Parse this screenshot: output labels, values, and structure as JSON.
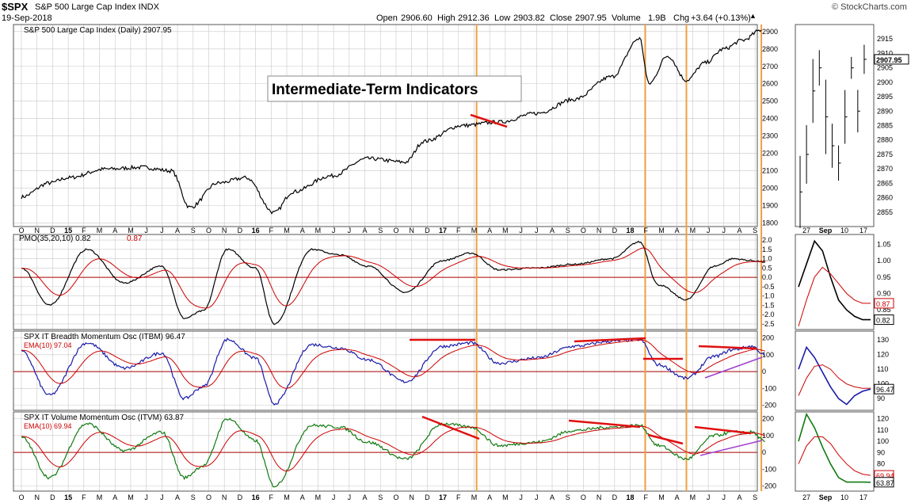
{
  "header": {
    "symbol": "$SPX",
    "name": "S&P 500 Large Cap Index INDX",
    "date": "19-Sep-2018",
    "credit": "© StockCharts.com",
    "open_label": "Open",
    "open": "2906.60",
    "high_label": "High",
    "high": "2912.36",
    "low_label": "Low",
    "low": "2903.82",
    "close_label": "Close",
    "close": "2907.95",
    "volume_label": "Volume",
    "volume": "1.9B",
    "chg_label": "Chg",
    "chg": "+3.64 (+0.13%)"
  },
  "colors": {
    "price": "#000000",
    "signal": "#cc0000",
    "itbm": "#1a1aaa",
    "itvm": "#117a11",
    "vline": "#f0a040",
    "trend_red": "#e01010",
    "trend_violet": "#a040d0",
    "zero": "#aa0000",
    "grid": "#c8c8c8",
    "frame": "#555555"
  },
  "x_axis": {
    "month_labels": [
      "O",
      "N",
      "D",
      "15",
      "F",
      "M",
      "A",
      "M",
      "J",
      "J",
      "A",
      "S",
      "O",
      "N",
      "D",
      "16",
      "F",
      "M",
      "A",
      "M",
      "J",
      "J",
      "A",
      "S",
      "O",
      "N",
      "D",
      "17",
      "F",
      "M",
      "A",
      "M",
      "J",
      "J",
      "A",
      "S",
      "O",
      "N",
      "D",
      "18",
      "F",
      "M",
      "A",
      "M",
      "J",
      "J",
      "A",
      "S"
    ],
    "bold_labels": [
      "15",
      "16",
      "17",
      "18"
    ],
    "zoom_labels": [
      "27",
      "Sep",
      "10",
      "17"
    ]
  },
  "annotation": "Intermediate-Term Indicators",
  "chart_data": [
    {
      "type": "line",
      "panel": "price",
      "title": "S&P 500 Large Cap Index (Daily) 2907.95",
      "frequency": "daily",
      "x_range": [
        "2014-10",
        "2018-09"
      ],
      "ylim": [
        1780,
        2940
      ],
      "y_ticks": [
        1800,
        1900,
        2000,
        2100,
        2200,
        2300,
        2400,
        2500,
        2600,
        2700,
        2800,
        2900
      ],
      "series": [
        {
          "name": "S&P 500 Large Cap Index",
          "x": [
            2014.75,
            2014.9,
            2015.0,
            2015.2,
            2015.4,
            2015.55,
            2015.65,
            2015.8,
            2015.95,
            2016.1,
            2016.2,
            2016.4,
            2016.6,
            2016.8,
            2016.9,
            2017.1,
            2017.3,
            2017.5,
            2017.7,
            2017.9,
            2018.05,
            2018.1,
            2018.2,
            2018.3,
            2018.4,
            2018.5,
            2018.6,
            2018.7
          ],
          "y": [
            1950,
            2030,
            2060,
            2110,
            2120,
            2100,
            1890,
            2030,
            2060,
            1860,
            1980,
            2070,
            2170,
            2150,
            2270,
            2360,
            2380,
            2430,
            2510,
            2640,
            2860,
            2600,
            2760,
            2620,
            2720,
            2800,
            2850,
            2908
          ]
        }
      ]
    },
    {
      "type": "line",
      "panel": "pmo",
      "title": "PMO(35,20,10)",
      "values_shown": {
        "pmo": 0.82,
        "signal": 0.87
      },
      "ylim": [
        -2.8,
        2.3
      ],
      "y_ticks": [
        -2.5,
        -2.0,
        -1.5,
        -1.0,
        -0.5,
        0.0,
        0.5,
        1.0,
        1.5,
        2.0
      ],
      "series": [
        {
          "name": "PMO",
          "x": [
            2014.75,
            2014.9,
            2015.1,
            2015.3,
            2015.5,
            2015.62,
            2015.72,
            2015.85,
            2016.0,
            2016.1,
            2016.3,
            2016.45,
            2016.6,
            2016.8,
            2017.0,
            2017.15,
            2017.3,
            2017.5,
            2017.7,
            2017.9,
            2018.05,
            2018.15,
            2018.3,
            2018.45,
            2018.55,
            2018.65,
            2018.72
          ],
          "y": [
            0.5,
            -1.5,
            1.5,
            -0.3,
            0.6,
            -2.2,
            -1.8,
            1.5,
            0.5,
            -2.5,
            1.5,
            1.2,
            0.6,
            -0.8,
            0.9,
            1.3,
            0.4,
            0.5,
            0.7,
            1.0,
            1.9,
            -0.4,
            -1.2,
            0.6,
            1.0,
            0.9,
            0.82
          ]
        }
      ]
    },
    {
      "type": "line",
      "panel": "itbm",
      "title": "SPX IT Breadth Momentum Osc (ITBM)",
      "values_shown": {
        "itbm": 96.47,
        "ema10": 97.04
      },
      "ylim": [
        -230,
        240
      ],
      "y_ticks": [
        -200,
        -100,
        0,
        100,
        200
      ],
      "series": [
        {
          "name": "ITBM",
          "x": [
            2014.75,
            2014.9,
            2015.1,
            2015.3,
            2015.5,
            2015.62,
            2015.72,
            2015.85,
            2016.0,
            2016.1,
            2016.3,
            2016.45,
            2016.6,
            2016.8,
            2017.0,
            2017.15,
            2017.3,
            2017.5,
            2017.7,
            2017.9,
            2018.05,
            2018.15,
            2018.3,
            2018.45,
            2018.55,
            2018.65,
            2018.72
          ],
          "y": [
            120,
            -140,
            170,
            20,
            110,
            -160,
            -90,
            190,
            80,
            -190,
            160,
            140,
            70,
            -60,
            150,
            170,
            50,
            80,
            150,
            180,
            190,
            40,
            -40,
            90,
            130,
            150,
            96.47
          ]
        }
      ]
    },
    {
      "type": "line",
      "panel": "itvm",
      "title": "SPX IT Volume Momentum Osc (ITVM)",
      "values_shown": {
        "itvm": 63.87,
        "ema10": 69.94
      },
      "ylim": [
        -230,
        240
      ],
      "y_ticks": [
        -200,
        -100,
        0,
        100,
        200
      ],
      "series": [
        {
          "name": "ITVM",
          "x": [
            2014.75,
            2014.9,
            2015.1,
            2015.3,
            2015.5,
            2015.62,
            2015.72,
            2015.85,
            2016.0,
            2016.1,
            2016.3,
            2016.45,
            2016.6,
            2016.8,
            2017.0,
            2017.15,
            2017.3,
            2017.5,
            2017.7,
            2017.9,
            2018.05,
            2018.15,
            2018.3,
            2018.45,
            2018.55,
            2018.65,
            2018.72
          ],
          "y": [
            90,
            -150,
            170,
            10,
            120,
            -150,
            -80,
            200,
            70,
            -200,
            160,
            150,
            60,
            -40,
            170,
            150,
            40,
            60,
            130,
            150,
            160,
            40,
            -40,
            100,
            120,
            120,
            63.87
          ]
        }
      ]
    },
    {
      "type": "line",
      "panel": "price_zoom",
      "frequency": "daily",
      "ylim": [
        2850,
        2920
      ],
      "y_ticks": [
        2855,
        2860,
        2865,
        2870,
        2875,
        2880,
        2885,
        2890,
        2895,
        2900,
        2905,
        2910,
        2915
      ],
      "close_label": "2907.95",
      "series": [
        {
          "name": "price",
          "x": [
            "08-22",
            "08-24",
            "08-28",
            "08-30",
            "09-04",
            "09-06",
            "09-10",
            "09-12",
            "09-14",
            "09-17",
            "09-19"
          ],
          "y": [
            2862,
            2875,
            2897,
            2905,
            2888,
            2878,
            2872,
            2888,
            2905,
            2890,
            2907.95
          ]
        }
      ]
    },
    {
      "type": "line",
      "panel": "pmo_zoom",
      "ylim": [
        0.79,
        1.08
      ],
      "y_ticks": [
        0.85,
        0.9,
        0.95,
        1.0,
        1.05
      ],
      "labels_shown": [
        "0.87",
        "0.82"
      ]
    },
    {
      "type": "line",
      "panel": "itbm_zoom",
      "ylim": [
        82,
        136
      ],
      "y_ticks": [
        90,
        100,
        110,
        120,
        130
      ],
      "labels_shown": [
        "96.47"
      ]
    },
    {
      "type": "line",
      "panel": "itvm_zoom",
      "ylim": [
        56,
        126
      ],
      "y_ticks": [
        70,
        80,
        90,
        100,
        110,
        120
      ],
      "labels_shown": [
        "69.94",
        "63.87"
      ]
    }
  ]
}
